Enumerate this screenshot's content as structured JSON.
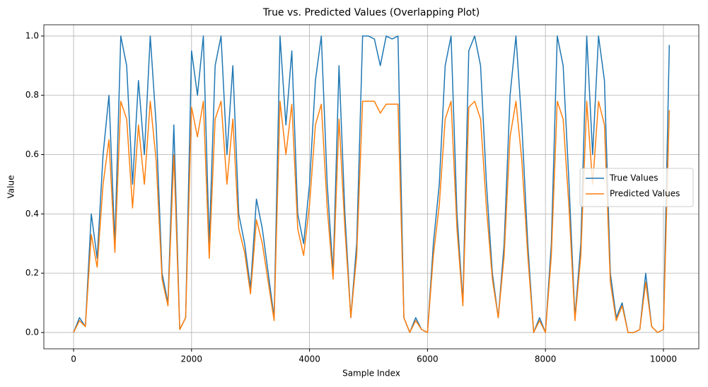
{
  "chart_data": {
    "type": "line",
    "title": "True vs. Predicted Values (Overlapping Plot)",
    "x_label": "Sample Index",
    "y_label": "Value",
    "x": [
      0,
      100,
      200,
      300,
      400,
      500,
      600,
      700,
      800,
      900,
      1000,
      1100,
      1200,
      1300,
      1400,
      1500,
      1600,
      1700,
      1800,
      1900,
      2000,
      2100,
      2200,
      2300,
      2400,
      2500,
      2600,
      2700,
      2800,
      2900,
      3000,
      3100,
      3200,
      3300,
      3400,
      3500,
      3600,
      3700,
      3800,
      3900,
      4000,
      4100,
      4200,
      4300,
      4400,
      4500,
      4600,
      4700,
      4800,
      4900,
      5000,
      5100,
      5200,
      5300,
      5400,
      5500,
      5600,
      5700,
      5800,
      5900,
      6000,
      6100,
      6200,
      6300,
      6400,
      6500,
      6600,
      6700,
      6800,
      6900,
      7000,
      7100,
      7200,
      7300,
      7400,
      7500,
      7600,
      7700,
      7800,
      7900,
      8000,
      8100,
      8200,
      8300,
      8400,
      8500,
      8600,
      8700,
      8800,
      8900,
      9000,
      9100,
      9200,
      9300,
      9400,
      9500,
      9600,
      9700,
      9800,
      9900,
      10000,
      10100
    ],
    "series": [
      {
        "name": "True Values",
        "color": "#1f77b4",
        "values": [
          0,
          0.05,
          0.02,
          0.4,
          0.25,
          0.6,
          0.8,
          0.3,
          1.0,
          0.9,
          0.5,
          0.85,
          0.6,
          1.0,
          0.7,
          0.2,
          0.1,
          0.7,
          0.01,
          0.05,
          0.95,
          0.8,
          1.0,
          0.3,
          0.9,
          1.0,
          0.6,
          0.9,
          0.4,
          0.3,
          0.15,
          0.45,
          0.35,
          0.2,
          0.05,
          1.0,
          0.7,
          0.95,
          0.4,
          0.3,
          0.5,
          0.85,
          1.0,
          0.5,
          0.2,
          0.9,
          0.4,
          0.05,
          0.3,
          1.0,
          1.0,
          0.99,
          0.9,
          1.0,
          0.99,
          1.0,
          0.05,
          0.0,
          0.05,
          0.01,
          0.0,
          0.3,
          0.5,
          0.9,
          1.0,
          0.4,
          0.1,
          0.95,
          1.0,
          0.9,
          0.5,
          0.2,
          0.05,
          0.3,
          0.8,
          1.0,
          0.7,
          0.3,
          0.0,
          0.05,
          0.0,
          0.3,
          1.0,
          0.9,
          0.5,
          0.05,
          0.3,
          1.0,
          0.6,
          1.0,
          0.85,
          0.2,
          0.05,
          0.1,
          0.0,
          0.0,
          0.01,
          0.2,
          0.02,
          0.0,
          0.01,
          0.97
        ]
      },
      {
        "name": "Predicted Values",
        "color": "#ff7f0e",
        "values": [
          0,
          0.04,
          0.02,
          0.33,
          0.22,
          0.5,
          0.65,
          0.27,
          0.78,
          0.72,
          0.42,
          0.7,
          0.5,
          0.78,
          0.58,
          0.18,
          0.09,
          0.6,
          0.01,
          0.05,
          0.76,
          0.66,
          0.78,
          0.25,
          0.72,
          0.78,
          0.5,
          0.72,
          0.35,
          0.27,
          0.13,
          0.38,
          0.3,
          0.17,
          0.04,
          0.78,
          0.6,
          0.77,
          0.35,
          0.26,
          0.43,
          0.7,
          0.77,
          0.42,
          0.18,
          0.72,
          0.35,
          0.05,
          0.26,
          0.78,
          0.78,
          0.78,
          0.74,
          0.77,
          0.77,
          0.77,
          0.05,
          0.0,
          0.04,
          0.01,
          0.0,
          0.26,
          0.43,
          0.72,
          0.78,
          0.35,
          0.09,
          0.76,
          0.78,
          0.72,
          0.42,
          0.18,
          0.05,
          0.26,
          0.66,
          0.78,
          0.58,
          0.26,
          0.0,
          0.04,
          0.0,
          0.26,
          0.78,
          0.72,
          0.42,
          0.04,
          0.26,
          0.78,
          0.5,
          0.78,
          0.7,
          0.17,
          0.04,
          0.09,
          0.0,
          0.0,
          0.01,
          0.17,
          0.02,
          0.0,
          0.01,
          0.75
        ]
      }
    ],
    "xlim": [
      -504,
      10600
    ],
    "xticks": [
      0,
      2000,
      4000,
      6000,
      8000,
      10000
    ],
    "ylim": [
      -0.055,
      1.038
    ],
    "yticks": [
      {
        "value": 0,
        "label": "0.0"
      },
      0.2,
      0.4,
      0.6,
      0.8,
      {
        "value": 1,
        "label": "1.0"
      }
    ],
    "grid": true,
    "legend": "right"
  }
}
